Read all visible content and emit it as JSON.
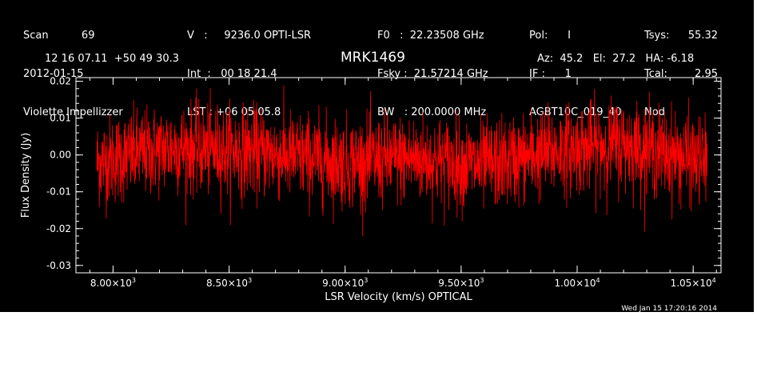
{
  "header": {
    "col1": [
      "Scan          69",
      "2012-01-15",
      "Violette Impellizzer"
    ],
    "col2": [
      "V   :     9236.0 OPTI-LSR",
      "Int  :   00 18 21.4",
      "LST : +06 05 05.8"
    ],
    "col3": [
      "F0   :  22.23508 GHz",
      "Fsky :  21.57214 GHz",
      "BW   : 200.0000 MHz"
    ],
    "col4": [
      "Pol:      I",
      "IF :      1",
      "AGBT10C_019_40"
    ],
    "col5": [
      "Tsys:",
      "Tcal:",
      "Nod"
    ],
    "col6": [
      "55.32",
      "2.95",
      ""
    ],
    "coords": "12 16 07.11  +50 49 30.3",
    "source": "MRK1469",
    "pointing": "Az:  45.2   El:  27.2   HA: -6.18",
    "timestamp": "Wed Jan 15 17:20:16 2014"
  },
  "chart_data": {
    "type": "line",
    "title": "MRK1469",
    "xlabel": "LSR Velocity (km/s) OPTICAL",
    "ylabel": "Flux Density (Jy)",
    "xlim": [
      7840,
      10620
    ],
    "ylim": [
      -0.032,
      0.021
    ],
    "x_ticks": [
      8000,
      8500,
      9000,
      9500,
      10000,
      10500
    ],
    "x_tick_labels": [
      {
        "mant": "8.00×10",
        "exp": "3"
      },
      {
        "mant": "8.50×10",
        "exp": "3"
      },
      {
        "mant": "9.00×10",
        "exp": "3"
      },
      {
        "mant": "9.50×10",
        "exp": "3"
      },
      {
        "mant": "1.00×10",
        "exp": "4"
      },
      {
        "mant": "1.05×10",
        "exp": "4"
      }
    ],
    "y_ticks": [
      0.02,
      0.01,
      0.0,
      -0.01,
      -0.02,
      -0.03
    ],
    "y_tick_labels": [
      "0.02",
      "0.01",
      "0.00",
      "-0.01",
      "-0.02",
      "-0.03"
    ],
    "grid": false,
    "series": [
      {
        "color": "#ff0000",
        "x_range": [
          7930,
          10560
        ],
        "mean": 0.0,
        "noise_rms": 0.006,
        "min": -0.022,
        "max": 0.019,
        "baseline": [
          {
            "x": 7930,
            "y": -0.002
          },
          {
            "x": 8250,
            "y": 0.002
          },
          {
            "x": 8600,
            "y": 0.001
          },
          {
            "x": 9000,
            "y": -0.002
          },
          {
            "x": 9300,
            "y": -0.001
          },
          {
            "x": 9600,
            "y": -0.003
          },
          {
            "x": 9900,
            "y": 0.001
          },
          {
            "x": 10200,
            "y": 0.003
          },
          {
            "x": 10560,
            "y": -0.002
          }
        ]
      }
    ]
  }
}
